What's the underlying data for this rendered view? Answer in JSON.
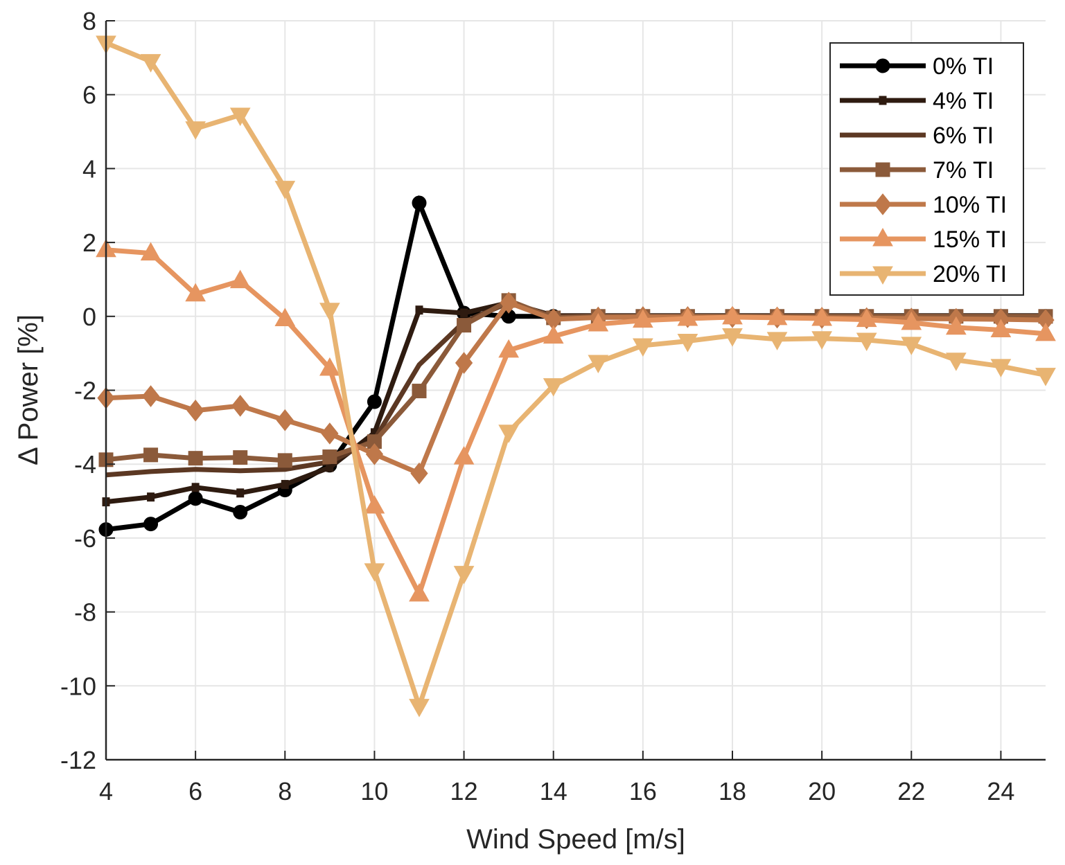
{
  "chart_data": {
    "type": "line",
    "title": "",
    "xlabel": "Wind Speed [m/s]",
    "ylabel": "Δ Power [%]",
    "xlim": [
      4,
      25
    ],
    "ylim": [
      -12,
      8
    ],
    "xticks": [
      4,
      6,
      8,
      10,
      12,
      14,
      16,
      18,
      20,
      22,
      24
    ],
    "yticks": [
      -12,
      -10,
      -8,
      -6,
      -4,
      -2,
      0,
      2,
      4,
      6,
      8
    ],
    "grid": true,
    "legend_position": "top-right",
    "x": [
      4,
      5,
      6,
      7,
      8,
      9,
      10,
      11,
      12,
      13,
      14,
      15,
      16,
      17,
      18,
      19,
      20,
      21,
      22,
      23,
      24,
      25
    ],
    "series": [
      {
        "name": "0% TI",
        "color": "#000000",
        "marker": "circle",
        "values": [
          -5.77,
          -5.62,
          -4.93,
          -5.3,
          -4.7,
          -4.03,
          -2.31,
          3.07,
          0.09,
          0.0,
          0.0,
          0.0,
          0.0,
          0.0,
          0.0,
          0.0,
          0.0,
          0.0,
          0.0,
          0.0,
          0.0,
          0.0
        ]
      },
      {
        "name": "4% TI",
        "color": "#2e1b10",
        "marker": "small-square",
        "values": [
          -5.02,
          -4.89,
          -4.63,
          -4.78,
          -4.55,
          -4.09,
          -3.15,
          0.17,
          0.09,
          0.37,
          0.02,
          0.02,
          0.02,
          0.02,
          0.02,
          0.02,
          0.02,
          0.02,
          0.02,
          0.02,
          0.02,
          0.02
        ]
      },
      {
        "name": "6% TI",
        "color": "#5c3823",
        "marker": "none",
        "values": [
          -4.29,
          -4.2,
          -4.14,
          -4.18,
          -4.14,
          -3.94,
          -3.34,
          -1.31,
          -0.15,
          0.37,
          0.0,
          0.0,
          0.0,
          0.0,
          0.0,
          0.0,
          0.0,
          0.0,
          0.0,
          0.0,
          0.0,
          0.0
        ]
      },
      {
        "name": "7% TI",
        "color": "#8b5a3a",
        "marker": "square",
        "values": [
          -3.88,
          -3.75,
          -3.84,
          -3.82,
          -3.9,
          -3.8,
          -3.39,
          -2.02,
          -0.24,
          0.43,
          -0.04,
          0.0,
          0.0,
          0.0,
          0.0,
          0.0,
          0.0,
          0.0,
          0.0,
          0.0,
          0.0,
          0.0
        ]
      },
      {
        "name": "10% TI",
        "color": "#bf784a",
        "marker": "diamond",
        "values": [
          -2.21,
          -2.16,
          -2.55,
          -2.42,
          -2.81,
          -3.17,
          -3.73,
          -4.25,
          -1.26,
          0.37,
          -0.08,
          -0.03,
          -0.02,
          -0.02,
          -0.02,
          -0.03,
          -0.04,
          -0.05,
          -0.06,
          -0.07,
          -0.08,
          -0.1
        ]
      },
      {
        "name": "15% TI",
        "color": "#e69560",
        "marker": "triangle-up",
        "values": [
          1.8,
          1.71,
          0.6,
          0.96,
          -0.07,
          -1.41,
          -5.14,
          -7.52,
          -3.81,
          -0.92,
          -0.54,
          -0.21,
          -0.11,
          -0.06,
          -0.02,
          -0.04,
          -0.06,
          -0.09,
          -0.17,
          -0.3,
          -0.37,
          -0.47
        ]
      },
      {
        "name": "20% TI",
        "color": "#e8b472",
        "marker": "triangle-down",
        "values": [
          7.4,
          6.9,
          5.08,
          5.45,
          3.47,
          0.17,
          -6.88,
          -10.55,
          -6.95,
          -3.13,
          -1.87,
          -1.24,
          -0.79,
          -0.67,
          -0.52,
          -0.62,
          -0.6,
          -0.64,
          -0.75,
          -1.18,
          -1.35,
          -1.59
        ]
      }
    ]
  }
}
